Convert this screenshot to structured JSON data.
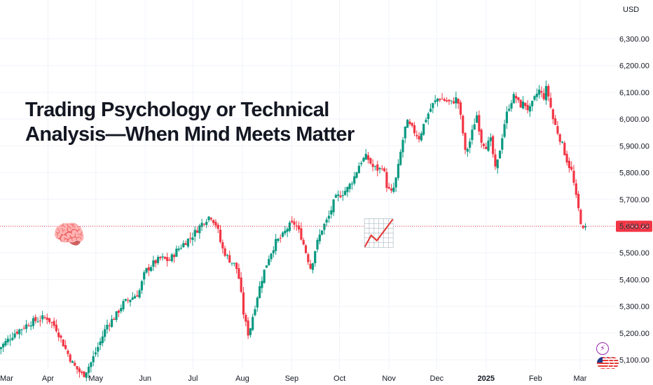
{
  "title_lines": [
    "Trading Psychology or Technical",
    "Analysis—When Mind Meets Matter"
  ],
  "icons": {
    "brain": "🧠",
    "trend": "📈",
    "bolt": "⚡"
  },
  "chart_data": {
    "type": "candlestick",
    "currency": "USD",
    "ylim": [
      5050,
      6370
    ],
    "y_ticks": [
      5100,
      5200,
      5300,
      5400,
      5500,
      5600,
      5700,
      5800,
      5900,
      6000,
      6100,
      6200,
      6300
    ],
    "y_tick_labels": [
      "5,100.00",
      "5,200.00",
      "5,300.00",
      "5,400.00",
      "5,500.00",
      "5,600.00",
      "5,700.00",
      "5,800.00",
      "5,900.00",
      "6,000.00",
      "6,100.00",
      "6,200.00",
      "6,300.00"
    ],
    "x_labels": [
      {
        "label": "Mar",
        "day": 0
      },
      {
        "label": "Apr",
        "day": 31
      },
      {
        "label": "May",
        "day": 61
      },
      {
        "label": "Jun",
        "day": 92
      },
      {
        "label": "Jul",
        "day": 122
      },
      {
        "label": "Aug",
        "day": 153
      },
      {
        "label": "Sep",
        "day": 184
      },
      {
        "label": "Oct",
        "day": 214
      },
      {
        "label": "Nov",
        "day": 245
      },
      {
        "label": "Dec",
        "day": 275
      },
      {
        "label": "2025",
        "day": 306,
        "bold": true
      },
      {
        "label": "Feb",
        "day": 337
      },
      {
        "label": "Mar",
        "day": 365
      }
    ],
    "x_day_range": [
      0,
      387
    ],
    "current_price": 5599.29,
    "current_price_label": "5,599.29",
    "colors": {
      "up": "#089981",
      "down": "#f23645"
    },
    "close_path": [
      [
        0,
        5140
      ],
      [
        10,
        5200
      ],
      [
        20,
        5240
      ],
      [
        30,
        5260
      ],
      [
        36,
        5220
      ],
      [
        42,
        5140
      ],
      [
        47,
        5080
      ],
      [
        53,
        5040
      ],
      [
        58,
        5090
      ],
      [
        64,
        5170
      ],
      [
        68,
        5230
      ],
      [
        73,
        5260
      ],
      [
        78,
        5310
      ],
      [
        83,
        5330
      ],
      [
        88,
        5350
      ],
      [
        92,
        5430
      ],
      [
        97,
        5460
      ],
      [
        102,
        5480
      ],
      [
        107,
        5470
      ],
      [
        112,
        5510
      ],
      [
        117,
        5540
      ],
      [
        121,
        5560
      ],
      [
        125,
        5590
      ],
      [
        129,
        5620
      ],
      [
        133,
        5640
      ],
      [
        137,
        5600
      ],
      [
        140,
        5520
      ],
      [
        144,
        5480
      ],
      [
        149,
        5450
      ],
      [
        151,
        5400
      ],
      [
        154,
        5260
      ],
      [
        157,
        5190
      ],
      [
        159,
        5250
      ],
      [
        162,
        5330
      ],
      [
        166,
        5420
      ],
      [
        170,
        5490
      ],
      [
        174,
        5540
      ],
      [
        178,
        5560
      ],
      [
        182,
        5600
      ],
      [
        186,
        5610
      ],
      [
        190,
        5560
      ],
      [
        193,
        5500
      ],
      [
        196,
        5440
      ],
      [
        199,
        5520
      ],
      [
        203,
        5590
      ],
      [
        207,
        5630
      ],
      [
        211,
        5700
      ],
      [
        215,
        5720
      ],
      [
        219,
        5740
      ],
      [
        223,
        5780
      ],
      [
        227,
        5840
      ],
      [
        231,
        5860
      ],
      [
        235,
        5820
      ],
      [
        239,
        5810
      ],
      [
        241,
        5830
      ],
      [
        244,
        5740
      ],
      [
        247,
        5720
      ],
      [
        250,
        5790
      ],
      [
        253,
        5900
      ],
      [
        256,
        5990
      ],
      [
        260,
        5960
      ],
      [
        264,
        5930
      ],
      [
        268,
        6000
      ],
      [
        272,
        6050
      ],
      [
        276,
        6080
      ],
      [
        280,
        6070
      ],
      [
        284,
        6060
      ],
      [
        288,
        6080
      ],
      [
        291,
        5970
      ],
      [
        293,
        5870
      ],
      [
        296,
        5920
      ],
      [
        300,
        6020
      ],
      [
        303,
        5920
      ],
      [
        306,
        5900
      ],
      [
        309,
        5920
      ],
      [
        312,
        5800
      ],
      [
        315,
        5900
      ],
      [
        318,
        6000
      ],
      [
        321,
        6060
      ],
      [
        324,
        6090
      ],
      [
        327,
        6050
      ],
      [
        330,
        6060
      ],
      [
        333,
        6030
      ],
      [
        336,
        6070
      ],
      [
        339,
        6110
      ],
      [
        342,
        6080
      ],
      [
        344,
        6120
      ],
      [
        346,
        6060
      ],
      [
        348,
        6000
      ],
      [
        351,
        5950
      ],
      [
        354,
        5900
      ],
      [
        357,
        5840
      ],
      [
        360,
        5800
      ],
      [
        362,
        5720
      ],
      [
        364,
        5660
      ],
      [
        366,
        5600
      ],
      [
        367,
        5580
      ],
      [
        369,
        5600
      ]
    ]
  }
}
